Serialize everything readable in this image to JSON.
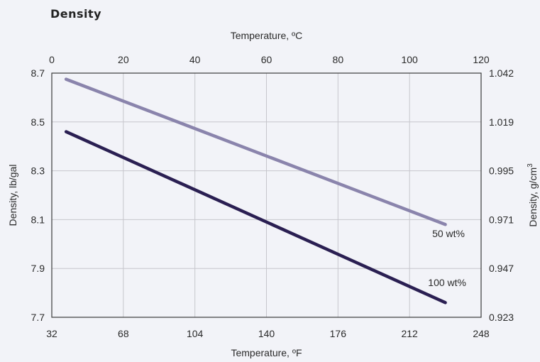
{
  "chart_data": {
    "type": "line",
    "title": "Density",
    "xlabel": "Temperature, ºF",
    "x2label": "Temperature, ºC",
    "ylabel": "Density, lb/gal",
    "y2label_prefix": "Density, g/cm",
    "y2label_sup": "3",
    "xlim": [
      32,
      248
    ],
    "ylim": [
      7.7,
      8.7
    ],
    "x2lim": [
      0,
      120
    ],
    "y2lim": [
      0.923,
      1.042
    ],
    "x_ticks": [
      "32",
      "68",
      "104",
      "140",
      "176",
      "212",
      "248"
    ],
    "x2_ticks": [
      "0",
      "20",
      "40",
      "60",
      "80",
      "100",
      "120"
    ],
    "y_ticks": [
      "8.7",
      "8.5",
      "8.3",
      "8.1",
      "7.9",
      "7.7"
    ],
    "y2_ticks": [
      "1.042",
      "1.019",
      "0.995",
      "0.971",
      "0.947",
      "0.923"
    ],
    "grid": "vertical",
    "series": [
      {
        "name": "50 wt%",
        "color": "#8a84ac",
        "x": [
          39.2,
          230
        ],
        "y": [
          8.675,
          8.08
        ]
      },
      {
        "name": "100 wt%",
        "color": "#2a1f52",
        "x": [
          39.2,
          230
        ],
        "y": [
          8.46,
          7.76
        ]
      }
    ]
  }
}
